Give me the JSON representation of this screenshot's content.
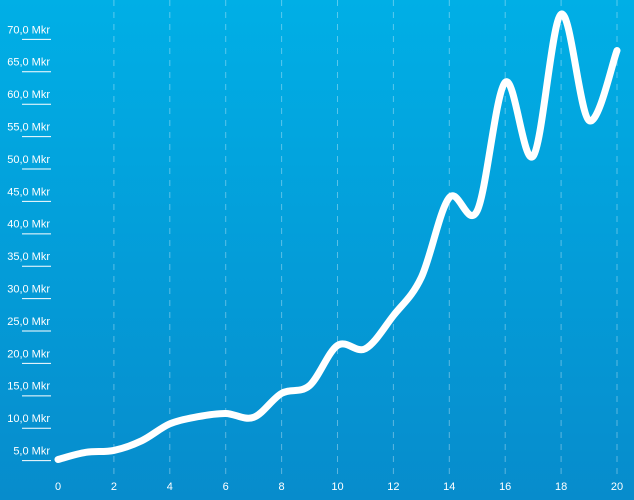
{
  "chart_data": {
    "type": "line",
    "x": [
      0,
      1,
      2,
      3,
      4,
      5,
      6,
      7,
      8,
      9,
      10,
      11,
      12,
      13,
      14,
      15,
      16,
      17,
      18,
      19,
      20
    ],
    "series": [
      {
        "color": "#ffffff",
        "values": [
          4.1,
          5.2,
          5.5,
          7.0,
          9.6,
          10.7,
          11.2,
          10.6,
          14.3,
          15.5,
          21.7,
          21.2,
          26.3,
          32.2,
          44.5,
          42.5,
          62.3,
          50.9,
          72.8,
          56.4,
          67.2
        ]
      }
    ],
    "xlim": [
      0,
      20
    ],
    "xticks": [
      0,
      2,
      4,
      6,
      8,
      10,
      12,
      14,
      16,
      18,
      20
    ],
    "ylim": [
      -2,
      75
    ],
    "yticks": [
      {
        "value": 5,
        "label": "5,0 Mkr"
      },
      {
        "value": 10,
        "label": "10,0 Mkr"
      },
      {
        "value": 15,
        "label": "15,0 Mkr"
      },
      {
        "value": 20,
        "label": "20,0 Mkr"
      },
      {
        "value": 25,
        "label": "25,0 Mkr"
      },
      {
        "value": 30,
        "label": "30,0 Mkr"
      },
      {
        "value": 35,
        "label": "35,0 Mkr"
      },
      {
        "value": 40,
        "label": "40,0 Mkr"
      },
      {
        "value": 45,
        "label": "45,0 Mkr"
      },
      {
        "value": 50,
        "label": "50,0 Mkr"
      },
      {
        "value": 55,
        "label": "55,0 Mkr"
      },
      {
        "value": 60,
        "label": "60,0 Mkr"
      },
      {
        "value": 65,
        "label": "65,0 Mkr"
      },
      {
        "value": 70,
        "label": "70,0 Mkr"
      }
    ],
    "grid": true
  }
}
